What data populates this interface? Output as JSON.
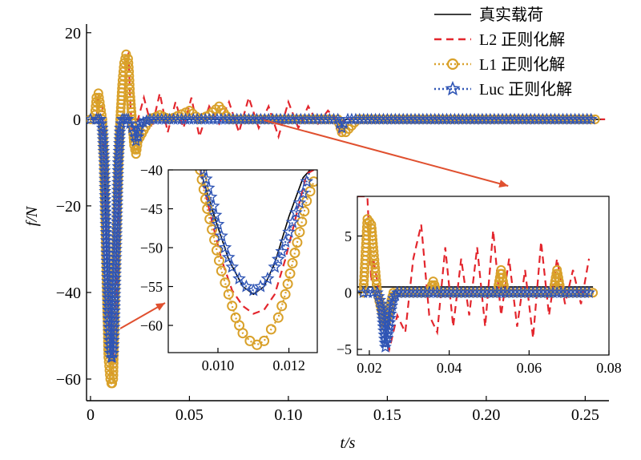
{
  "colors": {
    "true_load": "#000000",
    "l2": "#e3262d",
    "l1": "#d9a12a",
    "luc": "#2f55b5",
    "arrow": "#e0502f"
  },
  "chart_data": [
    {
      "id": "main",
      "type": "line",
      "xlabel": "t/s",
      "ylabel": "f/N",
      "xlim": [
        -0.002,
        0.262
      ],
      "ylim": [
        -65,
        22
      ],
      "xticks": [
        0,
        0.05,
        0.1,
        0.15,
        0.2,
        0.25
      ],
      "xtick_labels": [
        "0",
        "0.05",
        "0.10",
        "0.15",
        "0.20",
        "0.25"
      ],
      "yticks": [
        20,
        0,
        -20,
        -40,
        -60
      ],
      "ytick_labels": [
        "20",
        "0",
        "−20",
        "−40",
        "−60"
      ],
      "grid": false,
      "legend_position": "top-right",
      "legend": [
        "真实载荷",
        "L2 正则化解",
        "L1 正则化解",
        "Luc 正则化解"
      ],
      "series": [
        {
          "name": "真实载荷",
          "style": "solid",
          "x": [
            0,
            0.002,
            0.005,
            0.007,
            0.009,
            0.0105,
            0.011,
            0.0115,
            0.013,
            0.015,
            0.017,
            0.02,
            0.05,
            0.1,
            0.125,
            0.127,
            0.129,
            0.15,
            0.2,
            0.26
          ],
          "y": [
            0,
            0,
            0,
            -10,
            -40,
            -54,
            -56,
            -54,
            -35,
            -5,
            0,
            0,
            0,
            0,
            0,
            -2,
            0,
            0,
            0,
            0
          ]
        },
        {
          "name": "L2 正则化解",
          "style": "dashed",
          "x": [
            0,
            0.003,
            0.004,
            0.006,
            0.007,
            0.009,
            0.0105,
            0.011,
            0.0115,
            0.013,
            0.015,
            0.017,
            0.018,
            0.019,
            0.0195,
            0.02,
            0.021,
            0.022,
            0.024,
            0.027,
            0.031,
            0.035,
            0.039,
            0.043,
            0.047,
            0.051,
            0.055,
            0.06,
            0.065,
            0.07,
            0.075,
            0.08,
            0.085,
            0.09,
            0.095,
            0.1,
            0.105,
            0.11,
            0.115,
            0.12,
            0.124,
            0.126,
            0.128,
            0.132,
            0.14,
            0.15,
            0.2,
            0.26
          ],
          "y": [
            0,
            0,
            5,
            3,
            -10,
            -45,
            -58,
            -59,
            -57,
            -40,
            -10,
            2,
            14,
            15,
            12,
            5,
            -3,
            -5,
            0,
            5,
            -2,
            6,
            -3,
            4,
            -2,
            5,
            -4,
            3,
            -1,
            4,
            -3,
            5,
            -2,
            3,
            -4,
            4,
            -2,
            3,
            -1,
            2,
            0,
            -3,
            0,
            0,
            0,
            0,
            0,
            0
          ]
        },
        {
          "name": "L1 正则化解",
          "style": "dotted-circle",
          "x": [
            0,
            0.002,
            0.003,
            0.004,
            0.005,
            0.006,
            0.007,
            0.008,
            0.009,
            0.01,
            0.0105,
            0.011,
            0.0115,
            0.012,
            0.013,
            0.014,
            0.015,
            0.016,
            0.017,
            0.018,
            0.019,
            0.0195,
            0.02,
            0.021,
            0.022,
            0.023,
            0.024,
            0.03,
            0.035,
            0.04,
            0.05,
            0.055,
            0.06,
            0.065,
            0.07,
            0.08,
            0.1,
            0.12,
            0.125,
            0.127,
            0.129,
            0.135,
            0.15,
            0.2,
            0.255
          ],
          "y": [
            0,
            0,
            5,
            6,
            3,
            0,
            -12,
            -35,
            -55,
            -60,
            -61,
            -61,
            -60,
            -50,
            -30,
            -12,
            0,
            8,
            13,
            15,
            14,
            11,
            6,
            0,
            -6,
            -8,
            -5,
            0,
            1,
            0,
            2,
            0,
            1,
            3,
            0,
            0,
            0,
            0,
            0,
            -3,
            -3,
            0,
            0,
            0,
            0
          ]
        },
        {
          "name": "Luc 正则化解",
          "style": "dotted-star",
          "x": [
            0,
            0.003,
            0.004,
            0.005,
            0.006,
            0.007,
            0.008,
            0.009,
            0.0095,
            0.01,
            0.0105,
            0.011,
            0.0115,
            0.012,
            0.013,
            0.014,
            0.015,
            0.016,
            0.017,
            0.018,
            0.019,
            0.02,
            0.021,
            0.022,
            0.023,
            0.024,
            0.025,
            0.03,
            0.05,
            0.1,
            0.125,
            0.126,
            0.127,
            0.128,
            0.13,
            0.15,
            0.2,
            0.255
          ],
          "y": [
            0,
            0,
            0,
            0,
            -2,
            -10,
            -28,
            -45,
            -50,
            -54,
            -55,
            -55,
            -54,
            -48,
            -30,
            -10,
            -2,
            0,
            0,
            0,
            0,
            -1,
            -2,
            -3,
            -5,
            -4,
            -1,
            0,
            0,
            0,
            0,
            -1,
            -2,
            -1,
            0,
            0,
            0,
            0
          ]
        }
      ],
      "annotations": [
        {
          "from_data": [
            0.027,
            -2
          ],
          "to_data": [
            0.122,
            -2
          ],
          "note": "arrow to inset 2"
        },
        {
          "from_data": [
            0.011,
            -55
          ],
          "to_data": [
            0.04,
            -55
          ],
          "note": "arrow to inset 1"
        }
      ]
    },
    {
      "id": "inset1",
      "type": "line",
      "xlim": [
        0.0086,
        0.0128
      ],
      "ylim": [
        -63.5,
        -40
      ],
      "xticks": [
        0.01,
        0.012
      ],
      "xtick_labels": [
        "0.010",
        "0.012"
      ],
      "yticks": [
        -40,
        -45,
        -50,
        -55,
        -60
      ],
      "ytick_labels": [
        "−40",
        "−45",
        "−50",
        "−55",
        "−60"
      ],
      "series": [
        {
          "name": "真实载荷",
          "style": "solid",
          "x": [
            0.0095,
            0.0099,
            0.0103,
            0.0107,
            0.011,
            0.0113,
            0.0116,
            0.012,
            0.0124,
            0.0126
          ],
          "y": [
            -40,
            -46,
            -51.5,
            -55,
            -56,
            -55,
            -52,
            -46,
            -41,
            -40
          ]
        },
        {
          "name": "L2 正则化解",
          "style": "dashed",
          "x": [
            0.0095,
            0.0098,
            0.0101,
            0.0104,
            0.0107,
            0.011,
            0.0113,
            0.0116,
            0.0119,
            0.0122,
            0.0125,
            0.0127
          ],
          "y": [
            -40,
            -46,
            -51.5,
            -55.5,
            -57.5,
            -58.5,
            -58,
            -56,
            -51.5,
            -46,
            -40.5,
            -40
          ]
        },
        {
          "name": "L1 正则化解",
          "style": "dotted-circle",
          "x": [
            0.0095,
            0.0097,
            0.0099,
            0.0101,
            0.0103,
            0.0105,
            0.0107,
            0.0109,
            0.0111,
            0.0113,
            0.0115,
            0.0117,
            0.0119,
            0.0121,
            0.0123,
            0.0125,
            0.0127
          ],
          "y": [
            -40,
            -45,
            -49,
            -53,
            -56,
            -59,
            -61,
            -62,
            -62.5,
            -62,
            -60.5,
            -59,
            -56,
            -52,
            -48,
            -44,
            -41.5
          ]
        },
        {
          "name": "Luc 正则化解",
          "style": "dotted-star",
          "x": [
            0.0096,
            0.0098,
            0.01,
            0.0102,
            0.0104,
            0.0106,
            0.0108,
            0.011,
            0.0112,
            0.0114,
            0.0116,
            0.0118,
            0.012,
            0.0122,
            0.0124,
            0.0126
          ],
          "y": [
            -40,
            -43.5,
            -47,
            -50,
            -52.5,
            -54,
            -55,
            -55.5,
            -55,
            -54,
            -52.5,
            -50.5,
            -48,
            -45.5,
            -43,
            -40
          ]
        }
      ]
    },
    {
      "id": "inset2",
      "type": "line",
      "xlim": [
        0.017,
        0.08
      ],
      "ylim": [
        -5.5,
        8.5
      ],
      "xticks": [
        0.02,
        0.04,
        0.06,
        0.08
      ],
      "xtick_labels": [
        "0.02",
        "0.04",
        "0.06",
        "0.08"
      ],
      "yticks": [
        5,
        0,
        -5
      ],
      "ytick_labels": [
        "5",
        "0",
        "−5"
      ],
      "series": [
        {
          "name": "真实载荷",
          "style": "solid",
          "x": [
            0.017,
            0.076
          ],
          "y": [
            0.5,
            0.5
          ]
        },
        {
          "name": "L2 正则化解",
          "style": "dashed",
          "x": [
            0.017,
            0.0195,
            0.0205,
            0.021,
            0.022,
            0.023,
            0.024,
            0.025,
            0.027,
            0.029,
            0.031,
            0.033,
            0.035,
            0.037,
            0.039,
            0.041,
            0.043,
            0.045,
            0.047,
            0.049,
            0.051,
            0.053,
            0.055,
            0.057,
            0.059,
            0.061,
            0.063,
            0.065,
            0.067,
            0.069,
            0.071,
            0.073,
            0.075
          ],
          "y": [
            8.5,
            8.5,
            1,
            3,
            1,
            -1.5,
            -4,
            -5,
            -2,
            -3.5,
            3,
            6,
            -2,
            -3.5,
            4,
            -3,
            3,
            -2,
            4,
            -3,
            5.5,
            -2,
            3,
            -3,
            2,
            -4,
            4.5,
            -2,
            3,
            -1,
            2,
            -1,
            3
          ]
        },
        {
          "name": "L1 正则化解",
          "style": "dotted-circle",
          "x": [
            0.0185,
            0.0195,
            0.0205,
            0.021,
            0.022,
            0.023,
            0.024,
            0.026,
            0.035,
            0.036,
            0.037,
            0.052,
            0.053,
            0.054,
            0.066,
            0.067,
            0.068,
            0.076
          ],
          "y": [
            0,
            6.5,
            6,
            4,
            0,
            -1.5,
            -3,
            0,
            0,
            1,
            0,
            0,
            2,
            0,
            0,
            2,
            0,
            0
          ]
        },
        {
          "name": "Luc 正则化解",
          "style": "dotted-star",
          "x": [
            0.0185,
            0.022,
            0.023,
            0.0235,
            0.024,
            0.0245,
            0.025,
            0.0255,
            0.026,
            0.027,
            0.076
          ],
          "y": [
            0,
            0,
            -1,
            -3,
            -4.8,
            -4,
            -3,
            -1.5,
            -0.5,
            0,
            0
          ]
        }
      ]
    }
  ]
}
